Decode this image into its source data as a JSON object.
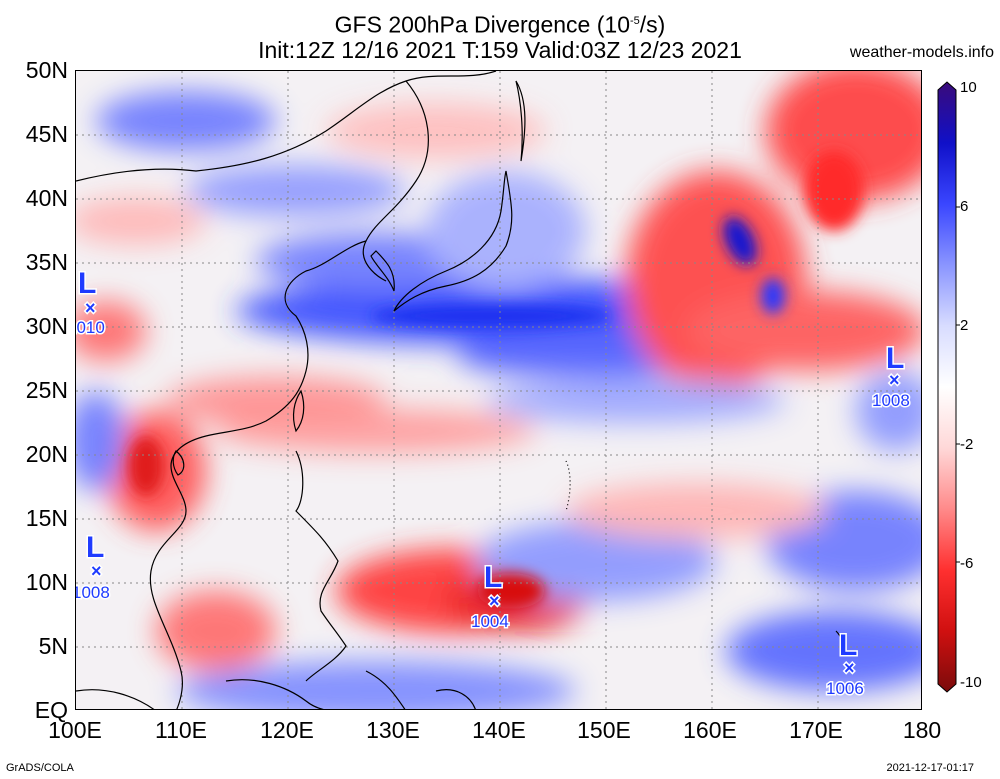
{
  "header": {
    "title_main": "GFS 200hPa Divergence (10",
    "title_exp": "-5",
    "title_unit": "/s)",
    "title_line2": "Init:12Z 12/16 2021 T:159 Valid:03Z 12/23 2021",
    "site": "weather-models.info"
  },
  "axes": {
    "y_labels": [
      "50N",
      "45N",
      "40N",
      "35N",
      "30N",
      "25N",
      "20N",
      "15N",
      "10N",
      "5N",
      "EQ"
    ],
    "x_labels": [
      "100E",
      "110E",
      "120E",
      "130E",
      "140E",
      "150E",
      "160E",
      "170E",
      "180"
    ]
  },
  "colorbar": {
    "labels": [
      "10",
      "6",
      "2",
      "-2",
      "-6",
      "-10"
    ],
    "colors": [
      "#7a0b0b",
      "#d01010",
      "#ff3030",
      "#ff8a8a",
      "#ffd8d8",
      "#ffffff",
      "#d8dcff",
      "#8a95ff",
      "#3a46ff",
      "#1010c8",
      "#3a0b7a"
    ]
  },
  "pressure_lows": [
    {
      "symbol": "L",
      "value": "1010"
    },
    {
      "symbol": "L",
      "value": "1008"
    },
    {
      "symbol": "L",
      "value": "1008"
    },
    {
      "symbol": "L",
      "value": "1004"
    },
    {
      "symbol": "L",
      "value": "1006"
    }
  ],
  "footer": {
    "left": "GrADS/COLA",
    "right": "2021-12-17-01:17"
  }
}
